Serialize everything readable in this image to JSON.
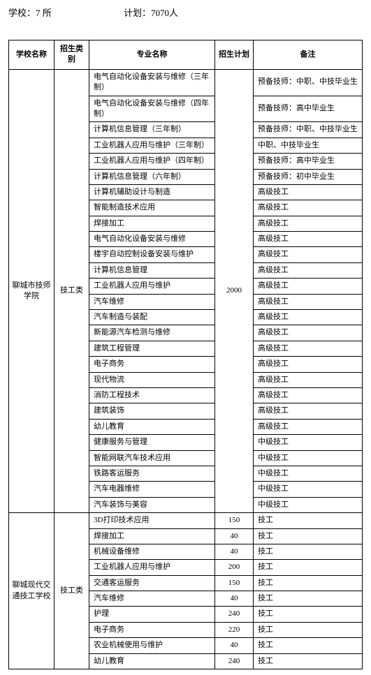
{
  "header": {
    "schools_label": "学校：",
    "schools_value": "7 所",
    "plan_label": "计划：",
    "plan_value": "7070人"
  },
  "table": {
    "headers": {
      "school": "学校名称",
      "category": "招生类别",
      "major": "专业名称",
      "plan": "招生计划",
      "remark": "备注"
    },
    "group1": {
      "school": "聊城市技师学院",
      "category": "技工类",
      "plan": "2000",
      "rows": [
        {
          "major": "电气自动化设备安装与维修（三年制）",
          "remark": "预备技师：中职、中技毕业生"
        },
        {
          "major": "电气自动化设备安装与维修（四年制）",
          "remark": "预备技师：高中毕业生"
        },
        {
          "major": "计算机信息管理（三年制）",
          "remark": "预备技师：中职、中技毕业生"
        },
        {
          "major": "工业机器人应用与维护（三年制）",
          "remark": "中职、中技毕业生"
        },
        {
          "major": "工业机器人应用与维护（四年制）",
          "remark": "预备技师：高中毕业生"
        },
        {
          "major": "计算机信息管理（六年制）",
          "remark": "预备技师：初中毕业生"
        },
        {
          "major": "计算机辅助设计与制造",
          "remark": "高级技工"
        },
        {
          "major": "智能制造技术应用",
          "remark": "高级技工"
        },
        {
          "major": "焊接加工",
          "remark": "高级技工"
        },
        {
          "major": "电气自动化设备安装与维修",
          "remark": "高级技工"
        },
        {
          "major": "楼宇自动控制设备安装与维护",
          "remark": "高级技工"
        },
        {
          "major": "计算机信息管理",
          "remark": "高级技工"
        },
        {
          "major": "工业机器人应用与维护",
          "remark": "高级技工"
        },
        {
          "major": "汽车维修",
          "remark": "高级技工"
        },
        {
          "major": "汽车制造与装配",
          "remark": "高级技工"
        },
        {
          "major": "新能源汽车检测与维修",
          "remark": "高级技工"
        },
        {
          "major": "建筑工程管理",
          "remark": "高级技工"
        },
        {
          "major": "电子商务",
          "remark": "高级技工"
        },
        {
          "major": "现代物流",
          "remark": "高级技工"
        },
        {
          "major": "消防工程技术",
          "remark": "高级技工"
        },
        {
          "major": "建筑装饰",
          "remark": "高级技工"
        },
        {
          "major": "幼儿教育",
          "remark": "高级技工"
        },
        {
          "major": "健康服务与管理",
          "remark": "中级技工"
        },
        {
          "major": "智能网联汽车技术应用",
          "remark": "中级技工"
        },
        {
          "major": "铁路客运服务",
          "remark": "中级技工"
        },
        {
          "major": "汽车电器维修",
          "remark": "中级技工"
        },
        {
          "major": "汽车装饰与美容",
          "remark": "中级技工"
        }
      ]
    },
    "group2": {
      "school": "聊城现代交通技工学校",
      "category": "技工类",
      "rows": [
        {
          "major": "3D打印技术应用",
          "plan": "150",
          "remark": "技工"
        },
        {
          "major": "焊接加工",
          "plan": "40",
          "remark": "技工"
        },
        {
          "major": "机械设备维修",
          "plan": "40",
          "remark": "技工"
        },
        {
          "major": "工业机器人应用与维护",
          "plan": "200",
          "remark": "技工"
        },
        {
          "major": "交通客运服务",
          "plan": "150",
          "remark": "技工"
        },
        {
          "major": "汽车维修",
          "plan": "40",
          "remark": "技工"
        },
        {
          "major": "护理",
          "plan": "240",
          "remark": "技工"
        },
        {
          "major": "电子商务",
          "plan": "220",
          "remark": "技工"
        },
        {
          "major": "农业机械使用与维护",
          "plan": "40",
          "remark": "技工"
        },
        {
          "major": "幼儿教育",
          "plan": "240",
          "remark": "技工"
        }
      ]
    }
  }
}
